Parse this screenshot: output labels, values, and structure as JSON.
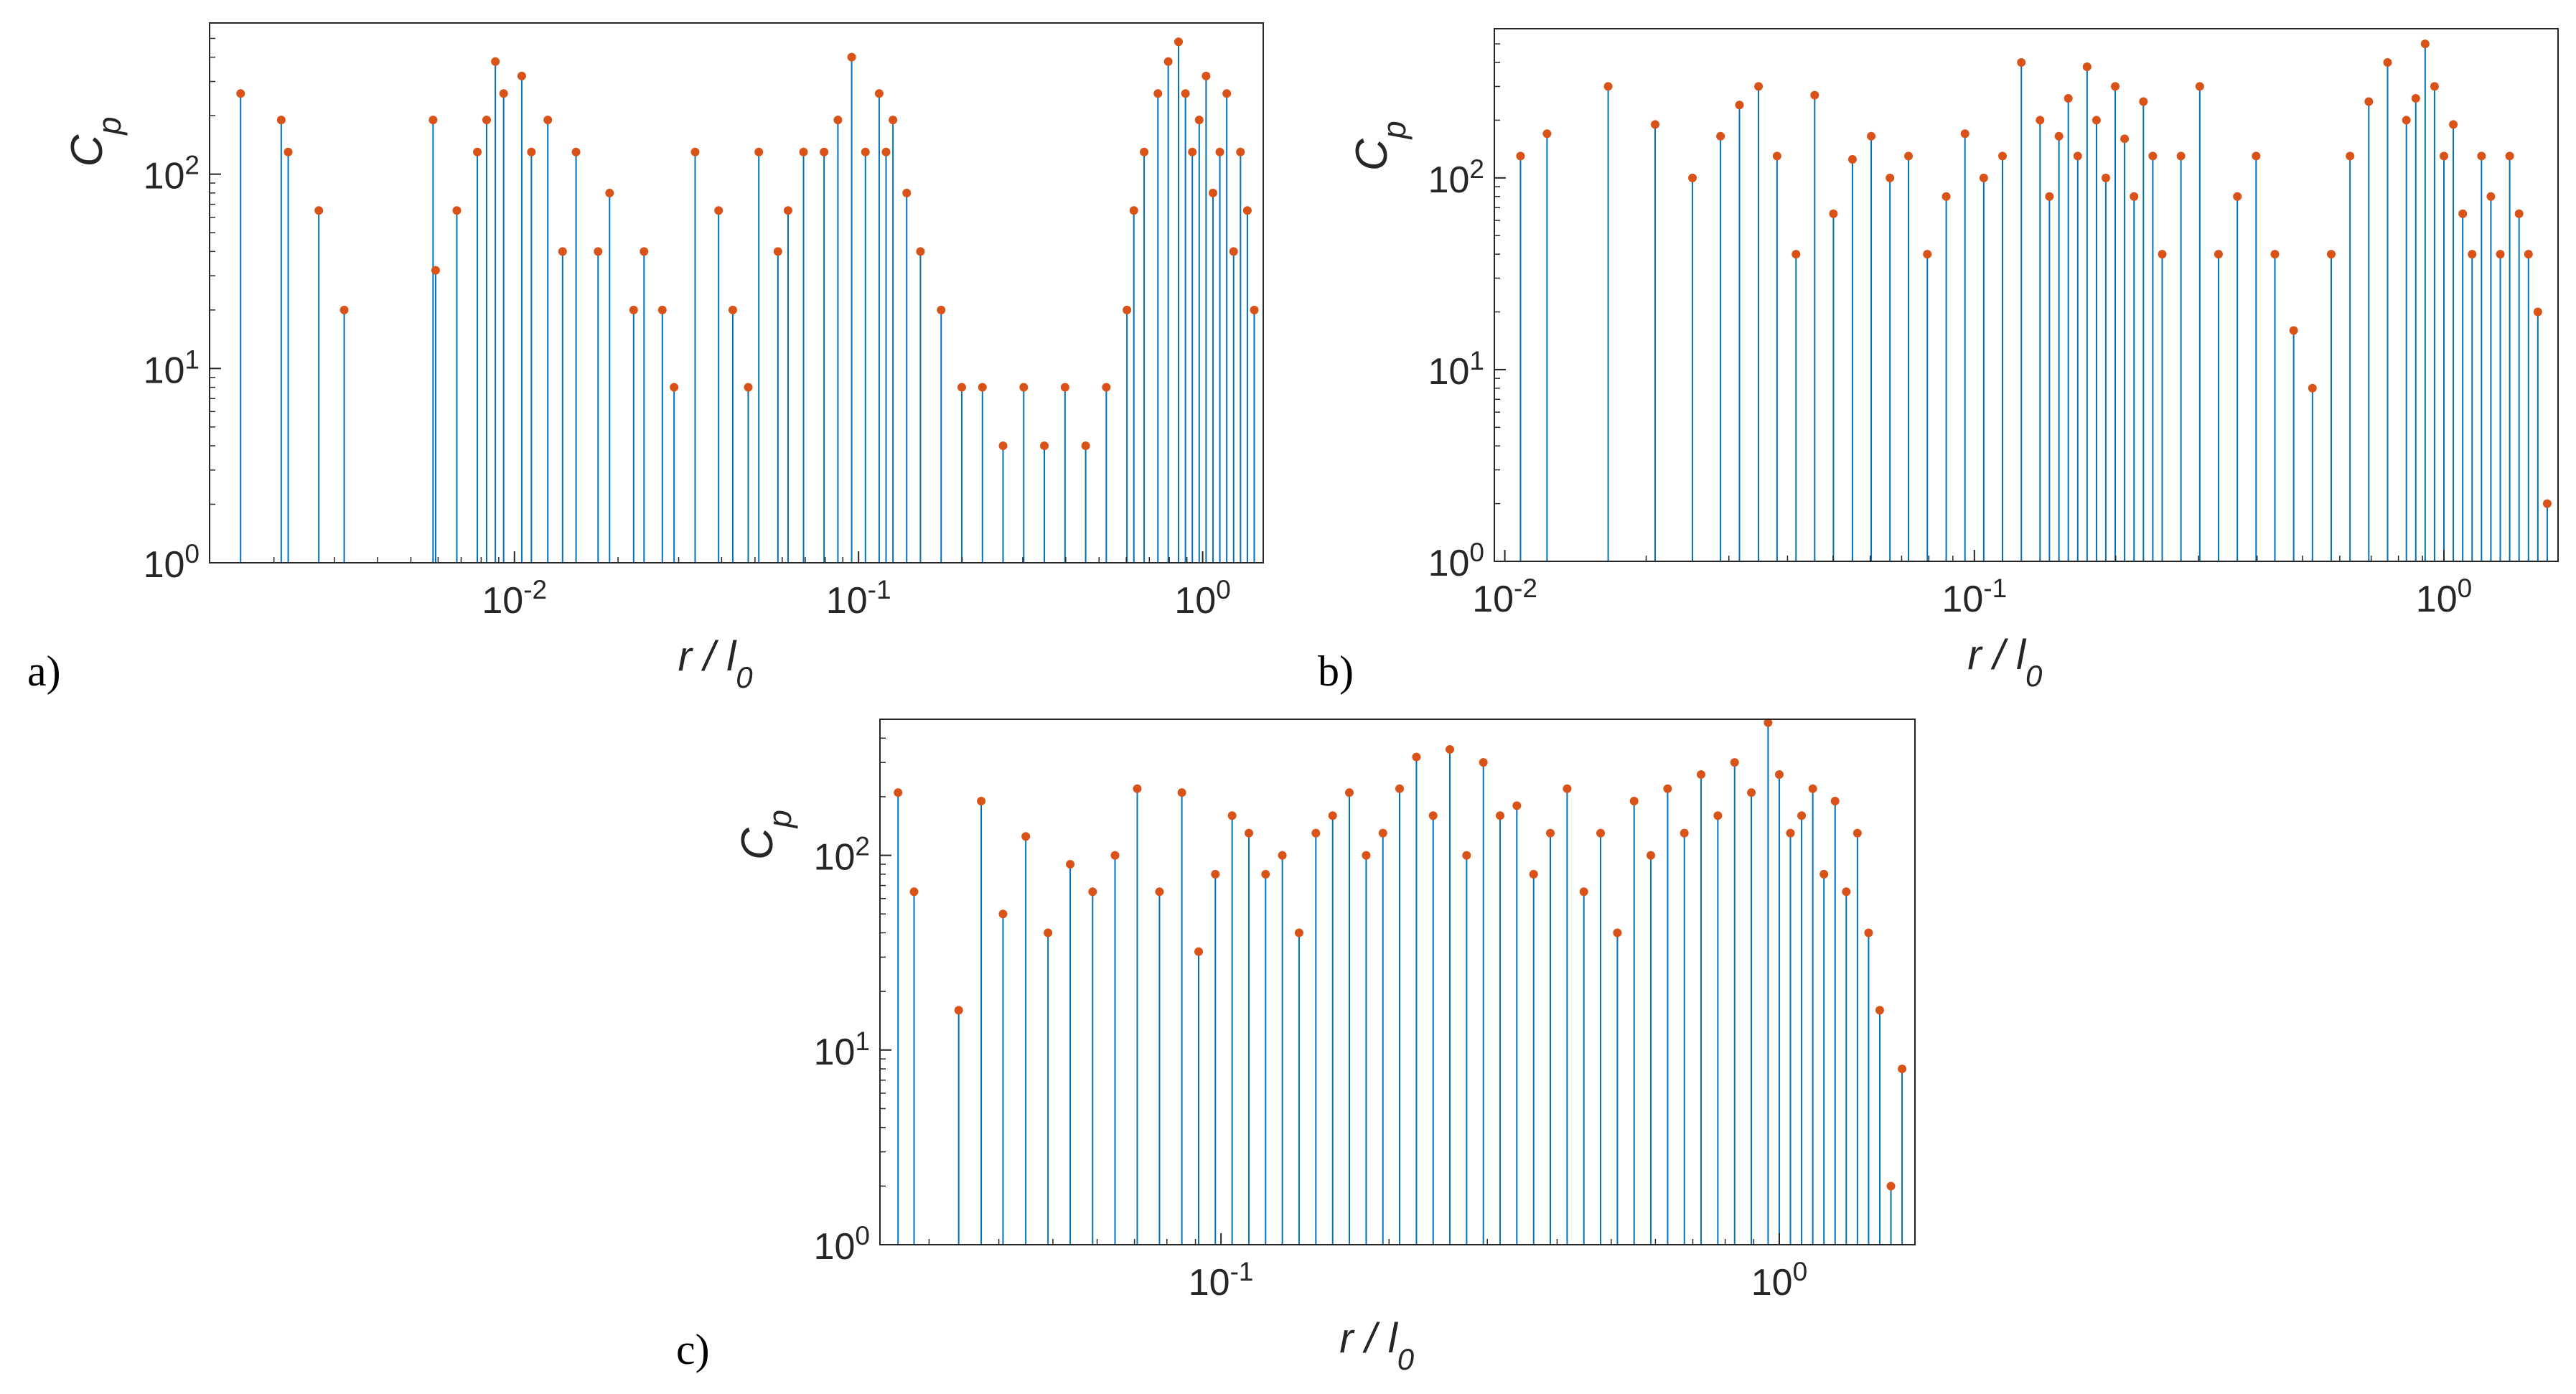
{
  "figure": {
    "panel_letters": [
      "a)",
      "b)",
      "c)"
    ]
  },
  "colors": {
    "stem": "#0072BD",
    "marker": "#D95319",
    "axes": "#262626",
    "background": "#ffffff"
  },
  "chart_data": [
    {
      "panel": "a)",
      "type": "stem",
      "xscale": "log",
      "yscale": "log",
      "xlabel": "r / l",
      "xlabel_subscript": "0",
      "ylabel": "C",
      "ylabel_subscript": "p",
      "xlim": [
        0.0013,
        1.5
      ],
      "ylim": [
        1,
        600
      ],
      "xticks": [
        0.01,
        0.1,
        1
      ],
      "xtick_labels": [
        "10",
        "10",
        "10"
      ],
      "xtick_exponents": [
        "-2",
        "-1",
        "0"
      ],
      "yticks": [
        1,
        10,
        100
      ],
      "ytick_labels": [
        "10",
        "10",
        "10"
      ],
      "ytick_exponents": [
        "0",
        "1",
        "2"
      ],
      "series": [
        {
          "name": "C_p",
          "x": [
            0.0016,
            0.0021,
            0.0022,
            0.0027,
            0.0032,
            0.0058,
            0.0059,
            0.0068,
            0.0078,
            0.0083,
            0.0088,
            0.0093,
            0.0105,
            0.0112,
            0.0125,
            0.0138,
            0.0151,
            0.0175,
            0.0189,
            0.0222,
            0.0238,
            0.0269,
            0.0291,
            0.0335,
            0.0392,
            0.0431,
            0.0478,
            0.0513,
            0.0583,
            0.0624,
            0.0692,
            0.0794,
            0.0871,
            0.0955,
            0.1047,
            0.1148,
            0.1202,
            0.1259,
            0.138,
            0.1513,
            0.1738,
            0.1995,
            0.2291,
            0.263,
            0.302,
            0.3467,
            0.3981,
            0.4571,
            0.5248,
            0.6026,
            0.631,
            0.6761,
            0.7413,
            0.7943,
            0.8511,
            0.8913,
            0.9333,
            0.9772,
            1.0233,
            1.0715,
            1.122,
            1.1749,
            1.2303,
            1.2882,
            1.349,
            1.4125
          ],
          "y": [
            260,
            190,
            130,
            65,
            20,
            190,
            32,
            65,
            130,
            190,
            380,
            260,
            320,
            130,
            190,
            40,
            130,
            40,
            80,
            20,
            40,
            20,
            8,
            130,
            65,
            20,
            8,
            130,
            40,
            65,
            130,
            130,
            190,
            400,
            130,
            260,
            130,
            190,
            80,
            40,
            20,
            8,
            8,
            4,
            8,
            4,
            8,
            4,
            8,
            20,
            65,
            130,
            260,
            380,
            480,
            260,
            130,
            190,
            320,
            80,
            130,
            260,
            40,
            130,
            65,
            20
          ]
        }
      ]
    },
    {
      "panel": "b)",
      "type": "stem",
      "xscale": "log",
      "yscale": "log",
      "xlabel": "r / l",
      "xlabel_subscript": "0",
      "ylabel": "C",
      "ylabel_subscript": "p",
      "xlim": [
        0.0095,
        1.75
      ],
      "ylim": [
        1,
        600
      ],
      "xticks": [
        0.01,
        0.1,
        1
      ],
      "xtick_labels": [
        "10",
        "10",
        "10"
      ],
      "xtick_exponents": [
        "-2",
        "-1",
        "0"
      ],
      "yticks": [
        1,
        10,
        100
      ],
      "ytick_labels": [
        "10",
        "10",
        "10"
      ],
      "ytick_exponents": [
        "0",
        "1",
        "2"
      ],
      "series": [
        {
          "name": "C_p",
          "x": [
            0.0108,
            0.0123,
            0.0166,
            0.0209,
            0.0251,
            0.0288,
            0.0316,
            0.0347,
            0.038,
            0.0417,
            0.0457,
            0.0501,
            0.055,
            0.0603,
            0.0661,
            0.0724,
            0.0794,
            0.0871,
            0.0955,
            0.1047,
            0.1148,
            0.1259,
            0.138,
            0.1445,
            0.1514,
            0.1585,
            0.166,
            0.1738,
            0.182,
            0.1905,
            0.1995,
            0.2089,
            0.2188,
            0.2291,
            0.2399,
            0.2512,
            0.2754,
            0.302,
            0.3311,
            0.3631,
            0.3981,
            0.4365,
            0.4786,
            0.5248,
            0.5754,
            0.631,
            0.6918,
            0.7586,
            0.8318,
            0.871,
            0.912,
            0.955,
            1.0,
            1.0471,
            1.0965,
            1.1482,
            1.2023,
            1.2589,
            1.3183,
            1.3804,
            1.4454,
            1.5136,
            1.5849,
            1.6596
          ],
          "y": [
            130,
            170,
            300,
            190,
            100,
            165,
            240,
            300,
            130,
            40,
            270,
            65,
            125,
            165,
            100,
            130,
            40,
            80,
            170,
            100,
            130,
            400,
            200,
            80,
            165,
            260,
            130,
            380,
            200,
            100,
            300,
            160,
            80,
            250,
            130,
            40,
            130,
            300,
            40,
            80,
            130,
            40,
            16,
            8,
            40,
            130,
            250,
            400,
            200,
            260,
            500,
            300,
            130,
            190,
            65,
            40,
            130,
            80,
            40,
            130,
            65,
            40,
            20,
            2
          ]
        }
      ]
    },
    {
      "panel": "c)",
      "type": "stem",
      "xscale": "log",
      "yscale": "log",
      "xlabel": "r / l",
      "xlabel_subscript": "0",
      "ylabel": "C",
      "ylabel_subscript": "p",
      "xlim": [
        0.0245,
        1.75
      ],
      "ylim": [
        1,
        500
      ],
      "xticks": [
        0.1,
        1
      ],
      "xtick_labels": [
        "10",
        "10"
      ],
      "xtick_exponents": [
        "-1",
        "0"
      ],
      "yticks": [
        1,
        10,
        100
      ],
      "ytick_labels": [
        "10",
        "10",
        "10"
      ],
      "ytick_exponents": [
        "0",
        "1",
        "2"
      ],
      "series": [
        {
          "name": "C_p",
          "x": [
            0.0264,
            0.0282,
            0.0339,
            0.0372,
            0.0407,
            0.0447,
            0.049,
            0.0537,
            0.0589,
            0.0646,
            0.0708,
            0.0776,
            0.0851,
            0.0912,
            0.0977,
            0.1047,
            0.1122,
            0.1202,
            0.1288,
            0.138,
            0.1479,
            0.1585,
            0.1698,
            0.182,
            0.195,
            0.2089,
            0.2239,
            0.2399,
            0.257,
            0.2754,
            0.2951,
            0.3162,
            0.3388,
            0.3631,
            0.389,
            0.4169,
            0.4467,
            0.4786,
            0.5129,
            0.5495,
            0.5888,
            0.631,
            0.6761,
            0.7244,
            0.7762,
            0.8318,
            0.8913,
            0.955,
            1.0,
            1.0471,
            1.0965,
            1.1482,
            1.2023,
            1.2589,
            1.3183,
            1.3804,
            1.4454,
            1.5136,
            1.5849,
            1.6596
          ],
          "y": [
            210,
            65,
            16,
            190,
            50,
            125,
            40,
            90,
            65,
            100,
            220,
            65,
            210,
            32,
            80,
            160,
            130,
            80,
            100,
            40,
            130,
            160,
            210,
            100,
            130,
            220,
            320,
            160,
            350,
            100,
            300,
            160,
            180,
            80,
            130,
            220,
            65,
            130,
            40,
            190,
            100,
            220,
            130,
            260,
            160,
            300,
            210,
            480,
            260,
            130,
            160,
            220,
            80,
            190,
            65,
            130,
            40,
            16,
            2,
            8
          ]
        }
      ]
    }
  ]
}
